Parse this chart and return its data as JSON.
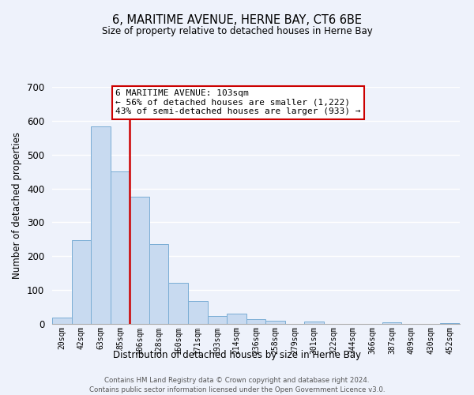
{
  "title": "6, MARITIME AVENUE, HERNE BAY, CT6 6BE",
  "subtitle": "Size of property relative to detached houses in Herne Bay",
  "xlabel": "Distribution of detached houses by size in Herne Bay",
  "ylabel": "Number of detached properties",
  "bar_labels": [
    "20sqm",
    "42sqm",
    "63sqm",
    "85sqm",
    "106sqm",
    "128sqm",
    "150sqm",
    "171sqm",
    "193sqm",
    "214sqm",
    "236sqm",
    "258sqm",
    "279sqm",
    "301sqm",
    "322sqm",
    "344sqm",
    "366sqm",
    "387sqm",
    "409sqm",
    "430sqm",
    "452sqm"
  ],
  "bar_values": [
    18,
    248,
    583,
    450,
    375,
    236,
    121,
    67,
    23,
    30,
    14,
    10,
    0,
    8,
    0,
    0,
    0,
    4,
    0,
    0,
    3
  ],
  "bar_color": "#c8daf0",
  "bar_edge_color": "#7aadd4",
  "vline_index": 4,
  "vline_color": "#cc0000",
  "ylim": [
    0,
    700
  ],
  "yticks": [
    0,
    100,
    200,
    300,
    400,
    500,
    600,
    700
  ],
  "annotation_title": "6 MARITIME AVENUE: 103sqm",
  "annotation_line1": "← 56% of detached houses are smaller (1,222)",
  "annotation_line2": "43% of semi-detached houses are larger (933) →",
  "annotation_box_facecolor": "#ffffff",
  "annotation_box_edgecolor": "#cc0000",
  "footer_line1": "Contains HM Land Registry data © Crown copyright and database right 2024.",
  "footer_line2": "Contains public sector information licensed under the Open Government Licence v3.0.",
  "background_color": "#eef2fb",
  "grid_color": "#ffffff",
  "spine_color": "#aaaaaa"
}
